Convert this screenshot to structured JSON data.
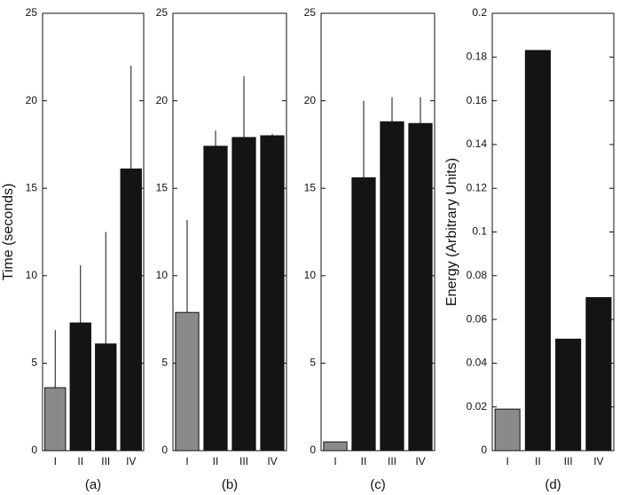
{
  "chart_data": [
    {
      "type": "bar",
      "caption": "(a)",
      "y_label": "Time (seconds)",
      "categories": [
        "I",
        "II",
        "III",
        "IV"
      ],
      "values": [
        3.6,
        7.3,
        6.1,
        16.1
      ],
      "errors": [
        3.3,
        3.3,
        6.4,
        5.9
      ],
      "colors": [
        "#8a8a8a",
        "#141414",
        "#141414",
        "#141414"
      ],
      "ylim": [
        0,
        25
      ],
      "yticks": [
        0,
        5,
        10,
        15,
        20,
        25
      ]
    },
    {
      "type": "bar",
      "caption": "(b)",
      "categories": [
        "I",
        "II",
        "III",
        "IV"
      ],
      "values": [
        7.9,
        17.4,
        17.9,
        18.0
      ],
      "errors": [
        5.3,
        0.9,
        3.5,
        0.1
      ],
      "colors": [
        "#8a8a8a",
        "#141414",
        "#141414",
        "#141414"
      ],
      "ylim": [
        0,
        25
      ],
      "yticks": [
        0,
        5,
        10,
        15,
        20,
        25
      ]
    },
    {
      "type": "bar",
      "caption": "(c)",
      "categories": [
        "I",
        "II",
        "III",
        "IV"
      ],
      "values": [
        0.5,
        15.6,
        18.8,
        18.7
      ],
      "errors": [
        0,
        4.4,
        1.4,
        1.5
      ],
      "colors": [
        "#8a8a8a",
        "#141414",
        "#141414",
        "#141414"
      ],
      "ylim": [
        0,
        25
      ],
      "yticks": [
        0,
        5,
        10,
        15,
        20,
        25
      ]
    },
    {
      "type": "bar",
      "caption": "(d)",
      "y_label": "Energy (Arbitrary Units)",
      "categories": [
        "I",
        "II",
        "III",
        "IV"
      ],
      "values": [
        0.019,
        0.183,
        0.051,
        0.07
      ],
      "colors": [
        "#8a8a8a",
        "#141414",
        "#141414",
        "#141414"
      ],
      "ylim": [
        0,
        0.2
      ],
      "yticks": [
        0,
        0.02,
        0.04,
        0.06,
        0.08,
        0.1,
        0.12,
        0.14,
        0.16,
        0.18,
        0.2
      ]
    }
  ]
}
